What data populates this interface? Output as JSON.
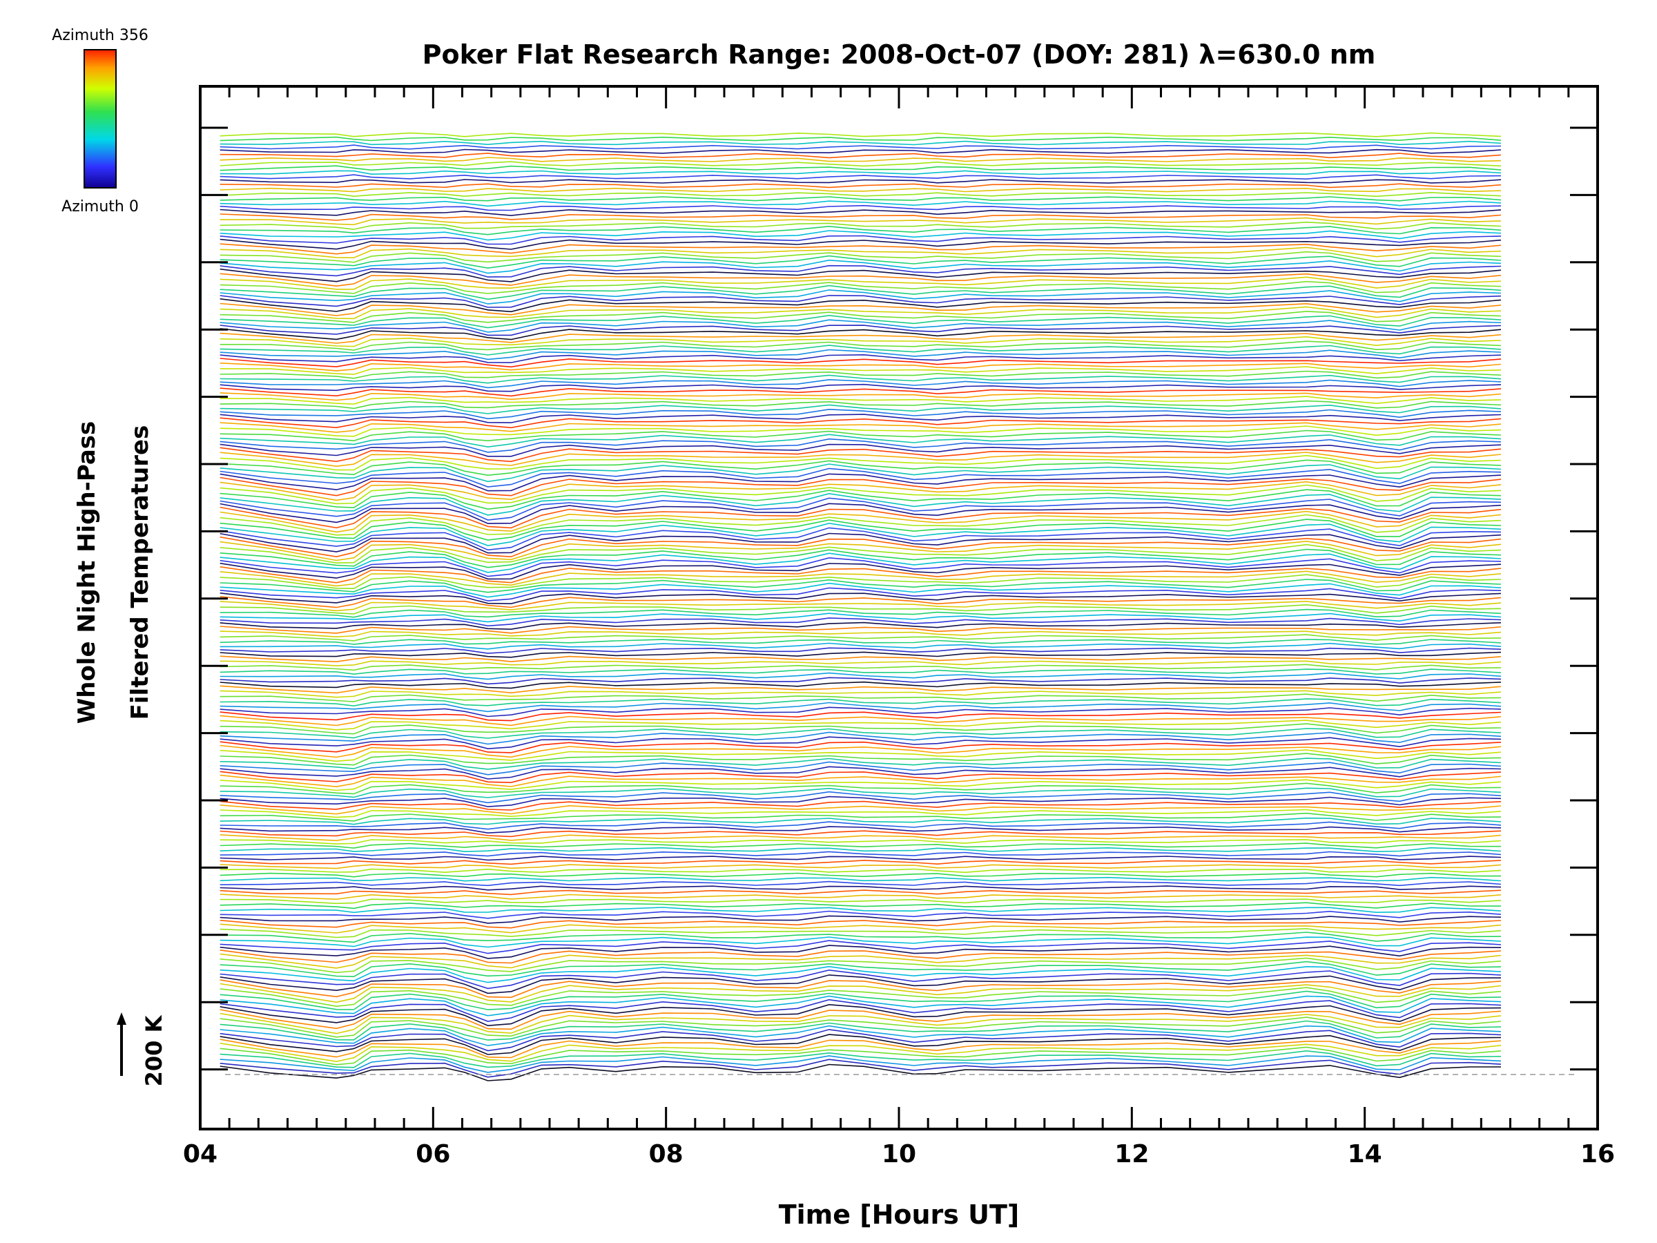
{
  "chart_data": {
    "type": "line",
    "title": "Poker Flat Research Range: 2008-Oct-07 (DOY: 281) λ=630.0 nm",
    "xlabel": "Time [Hours UT]",
    "ylabel_line1": "Whole Night High-Pass",
    "ylabel_line2": "Filtered Temperatures",
    "scale_bar_label": "200 K",
    "xlim": [
      4.0,
      16.0
    ],
    "x_ticks": [
      4,
      6,
      8,
      10,
      12,
      14,
      16
    ],
    "x_tick_labels": [
      "04",
      "06",
      "08",
      "10",
      "12",
      "14",
      "16"
    ],
    "y_tick_count": 15,
    "colorbar": {
      "top_label": "Azimuth 356",
      "bottom_label": "Azimuth 0",
      "colormap": "rainbow (blue-black at 0 to red at 356)"
    },
    "series_count": 220,
    "baseline_dashed": true,
    "x": [
      4.17,
      4.6,
      5.17,
      5.32,
      5.47,
      5.8,
      6.1,
      6.27,
      6.47,
      6.67,
      6.93,
      7.17,
      7.57,
      7.97,
      8.4,
      8.77,
      9.13,
      9.4,
      9.7,
      10.13,
      10.33,
      10.57,
      10.8,
      11.2,
      11.8,
      12.3,
      12.83,
      13.5,
      13.7,
      14.1,
      14.3,
      14.57,
      14.9,
      15.17
    ],
    "common_profile_K": [
      0,
      -14,
      -34,
      -30,
      -8,
      -4,
      -8,
      -20,
      -36,
      -34,
      -12,
      -4,
      -10,
      -2,
      -8,
      -16,
      -12,
      2,
      -4,
      -18,
      -18,
      -14,
      -12,
      -8,
      -6,
      -8,
      -16,
      2,
      0,
      -26,
      -28,
      -4,
      -6,
      -4
    ]
  }
}
